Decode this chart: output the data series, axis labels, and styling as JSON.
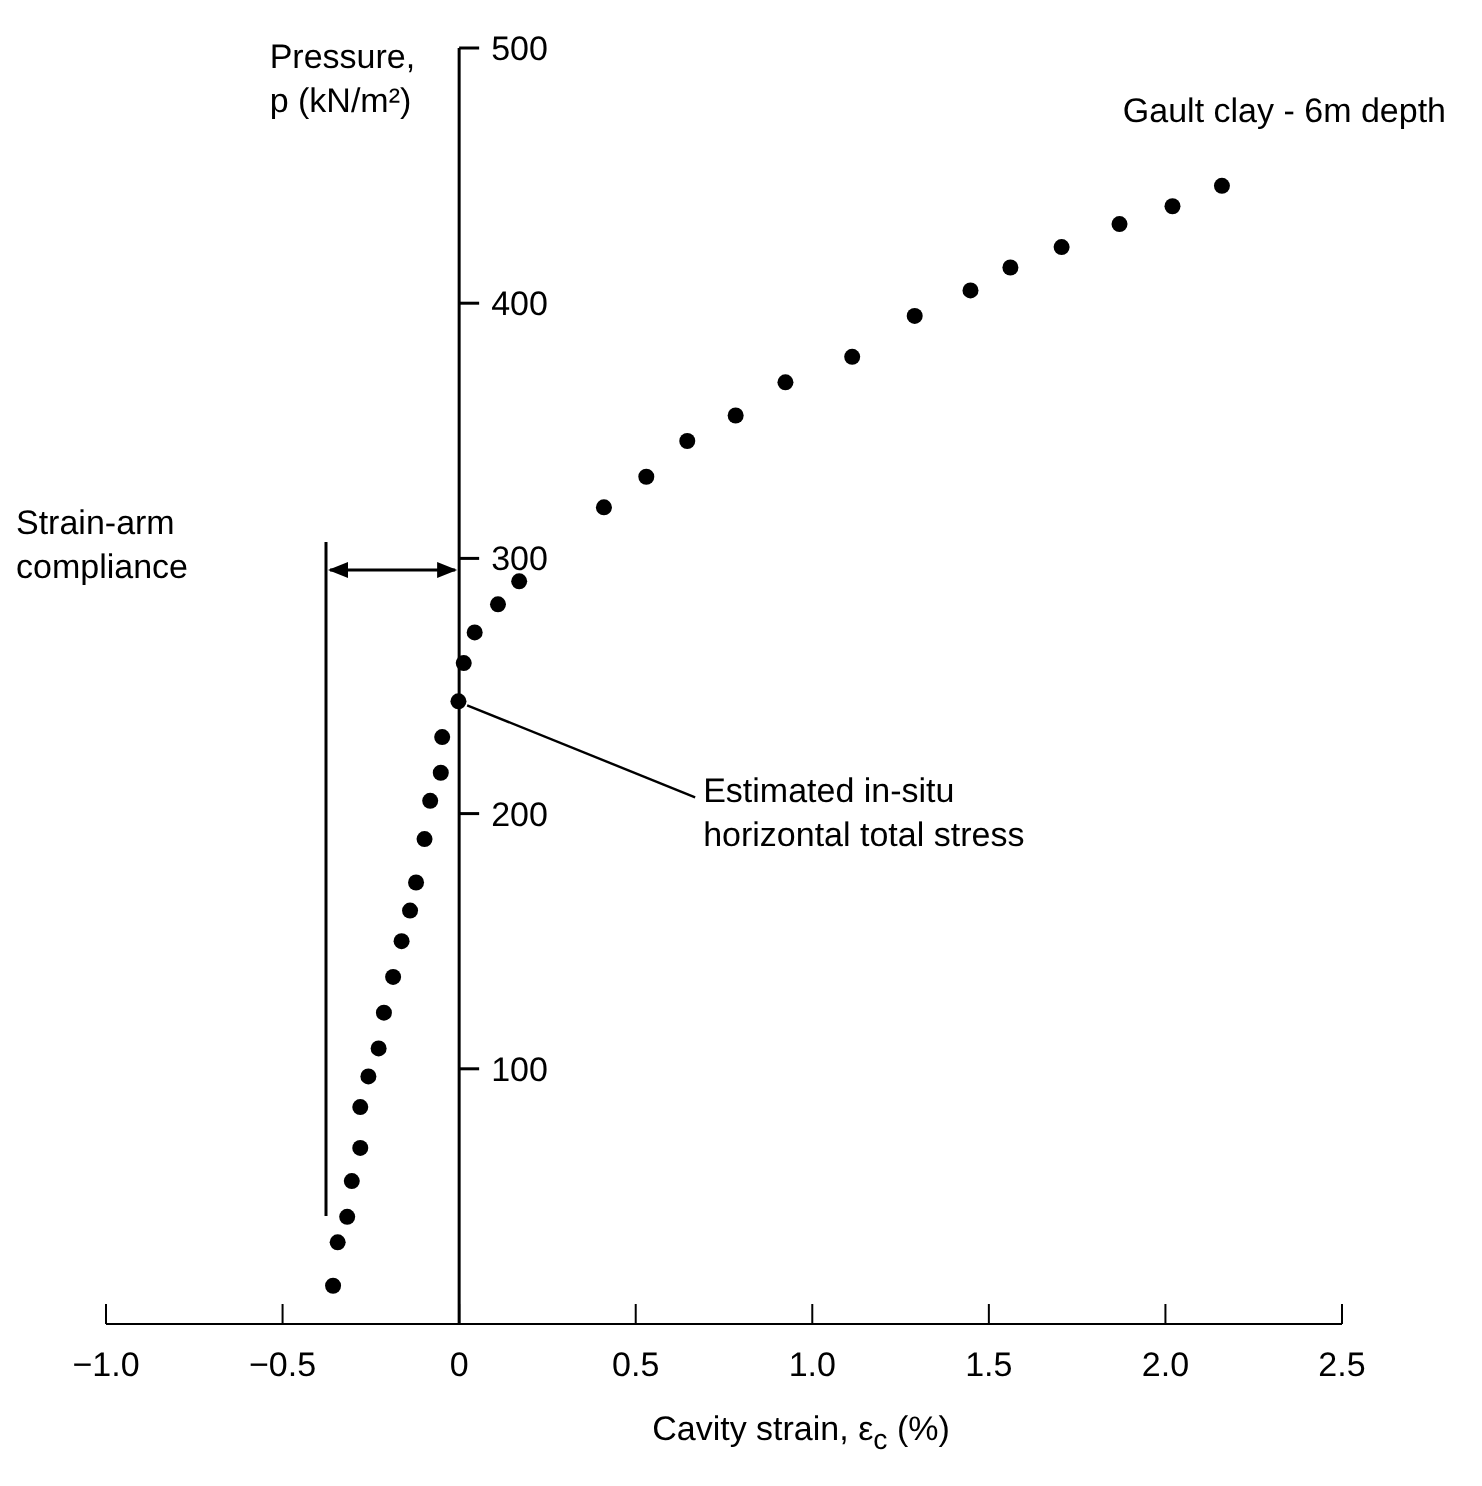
{
  "chart_data": {
    "type": "scatter",
    "xlabel": "Cavity strain, ε$_{c}$ (%)",
    "ylabel": "Pressure, p (kN/m²)",
    "marker": "circle",
    "xlim": [
      -1.0,
      2.5
    ],
    "xticks": [
      {
        "value": -1.0,
        "label": "−1.0"
      },
      {
        "value": -0.5,
        "label": "−0.5"
      },
      0,
      {
        "value": 0.5,
        "label": "0.5"
      },
      {
        "value": 1.0,
        "label": "1.0"
      },
      {
        "value": 1.5,
        "label": "1.5"
      },
      {
        "value": 2.0,
        "label": "2.0"
      },
      {
        "value": 2.5,
        "label": "2.5"
      }
    ],
    "ylim": [
      0,
      500
    ],
    "yticks": [
      100,
      200,
      300,
      400,
      500
    ],
    "series": [
      {
        "color": "#000000",
        "x": [
          -0.357,
          -0.344,
          -0.317,
          -0.304,
          -0.28,
          -0.28,
          -0.257,
          -0.228,
          -0.213,
          -0.187,
          -0.163,
          -0.139,
          -0.122,
          -0.098,
          -0.082,
          -0.052,
          -0.048,
          -0.002,
          0.013,
          0.044,
          0.11,
          0.17,
          0.41,
          0.53,
          0.646,
          0.783,
          0.924,
          1.113,
          1.29,
          1.448,
          1.561,
          1.706,
          1.87,
          2.02,
          2.16
        ],
        "values": [
          15,
          32,
          42,
          56,
          69,
          85,
          97,
          108,
          122,
          136,
          150,
          162,
          173,
          190,
          205,
          216,
          230,
          244,
          259,
          271,
          282,
          291,
          320,
          332,
          346,
          356,
          369,
          379,
          395,
          405,
          414,
          422,
          431,
          438,
          446
        ]
      }
    ],
    "annotations": [
      "Gault clay - 6m depth",
      "Strain-arm compliance",
      {
        "text": "Estimated in-situ horizontal total stress",
        "x": 0,
        "y": 244
      }
    ]
  }
}
